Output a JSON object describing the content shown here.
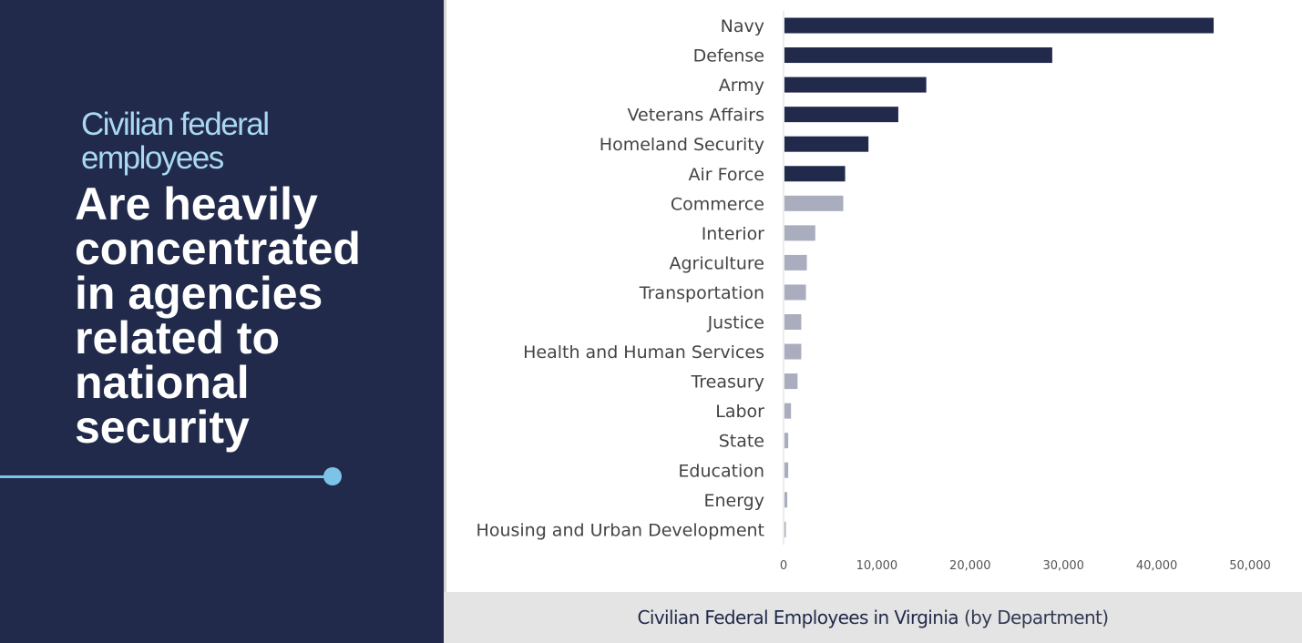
{
  "left_panel": {
    "subtitle": "Civilian federal employees",
    "headline": "Are heavily concentrated in agencies related to national security",
    "accent_color": "#7cc3e8",
    "background_color": "#212a4a"
  },
  "footer": {
    "title_bold": "Civilian Federal Employees in Virginia",
    "title_suffix": "(by Department)"
  },
  "chart_data": {
    "type": "bar",
    "orientation": "horizontal",
    "categories": [
      "Navy",
      "Defense",
      "Army",
      "Veterans Affairs",
      "Homeland Security",
      "Air Force",
      "Commerce",
      "Interior",
      "Agriculture",
      "Transportation",
      "Justice",
      "Health and Human Services",
      "Treasury",
      "Labor",
      "State",
      "Education",
      "Energy",
      "Housing and Urban Development"
    ],
    "values": [
      46000,
      28700,
      15200,
      12200,
      9000,
      6500,
      6300,
      3300,
      2400,
      2300,
      1800,
      1800,
      1400,
      700,
      400,
      400,
      300,
      100
    ],
    "highlight_count": 6,
    "highlight_color": "#212a4a",
    "muted_color": "#a9adbd",
    "xlim": [
      0,
      50000
    ],
    "xticks": [
      "0",
      "10,000",
      "20,000",
      "30,000",
      "40,000",
      "50,000"
    ],
    "xtick_values": [
      0,
      10000,
      20000,
      30000,
      40000,
      50000
    ],
    "grid": false
  }
}
